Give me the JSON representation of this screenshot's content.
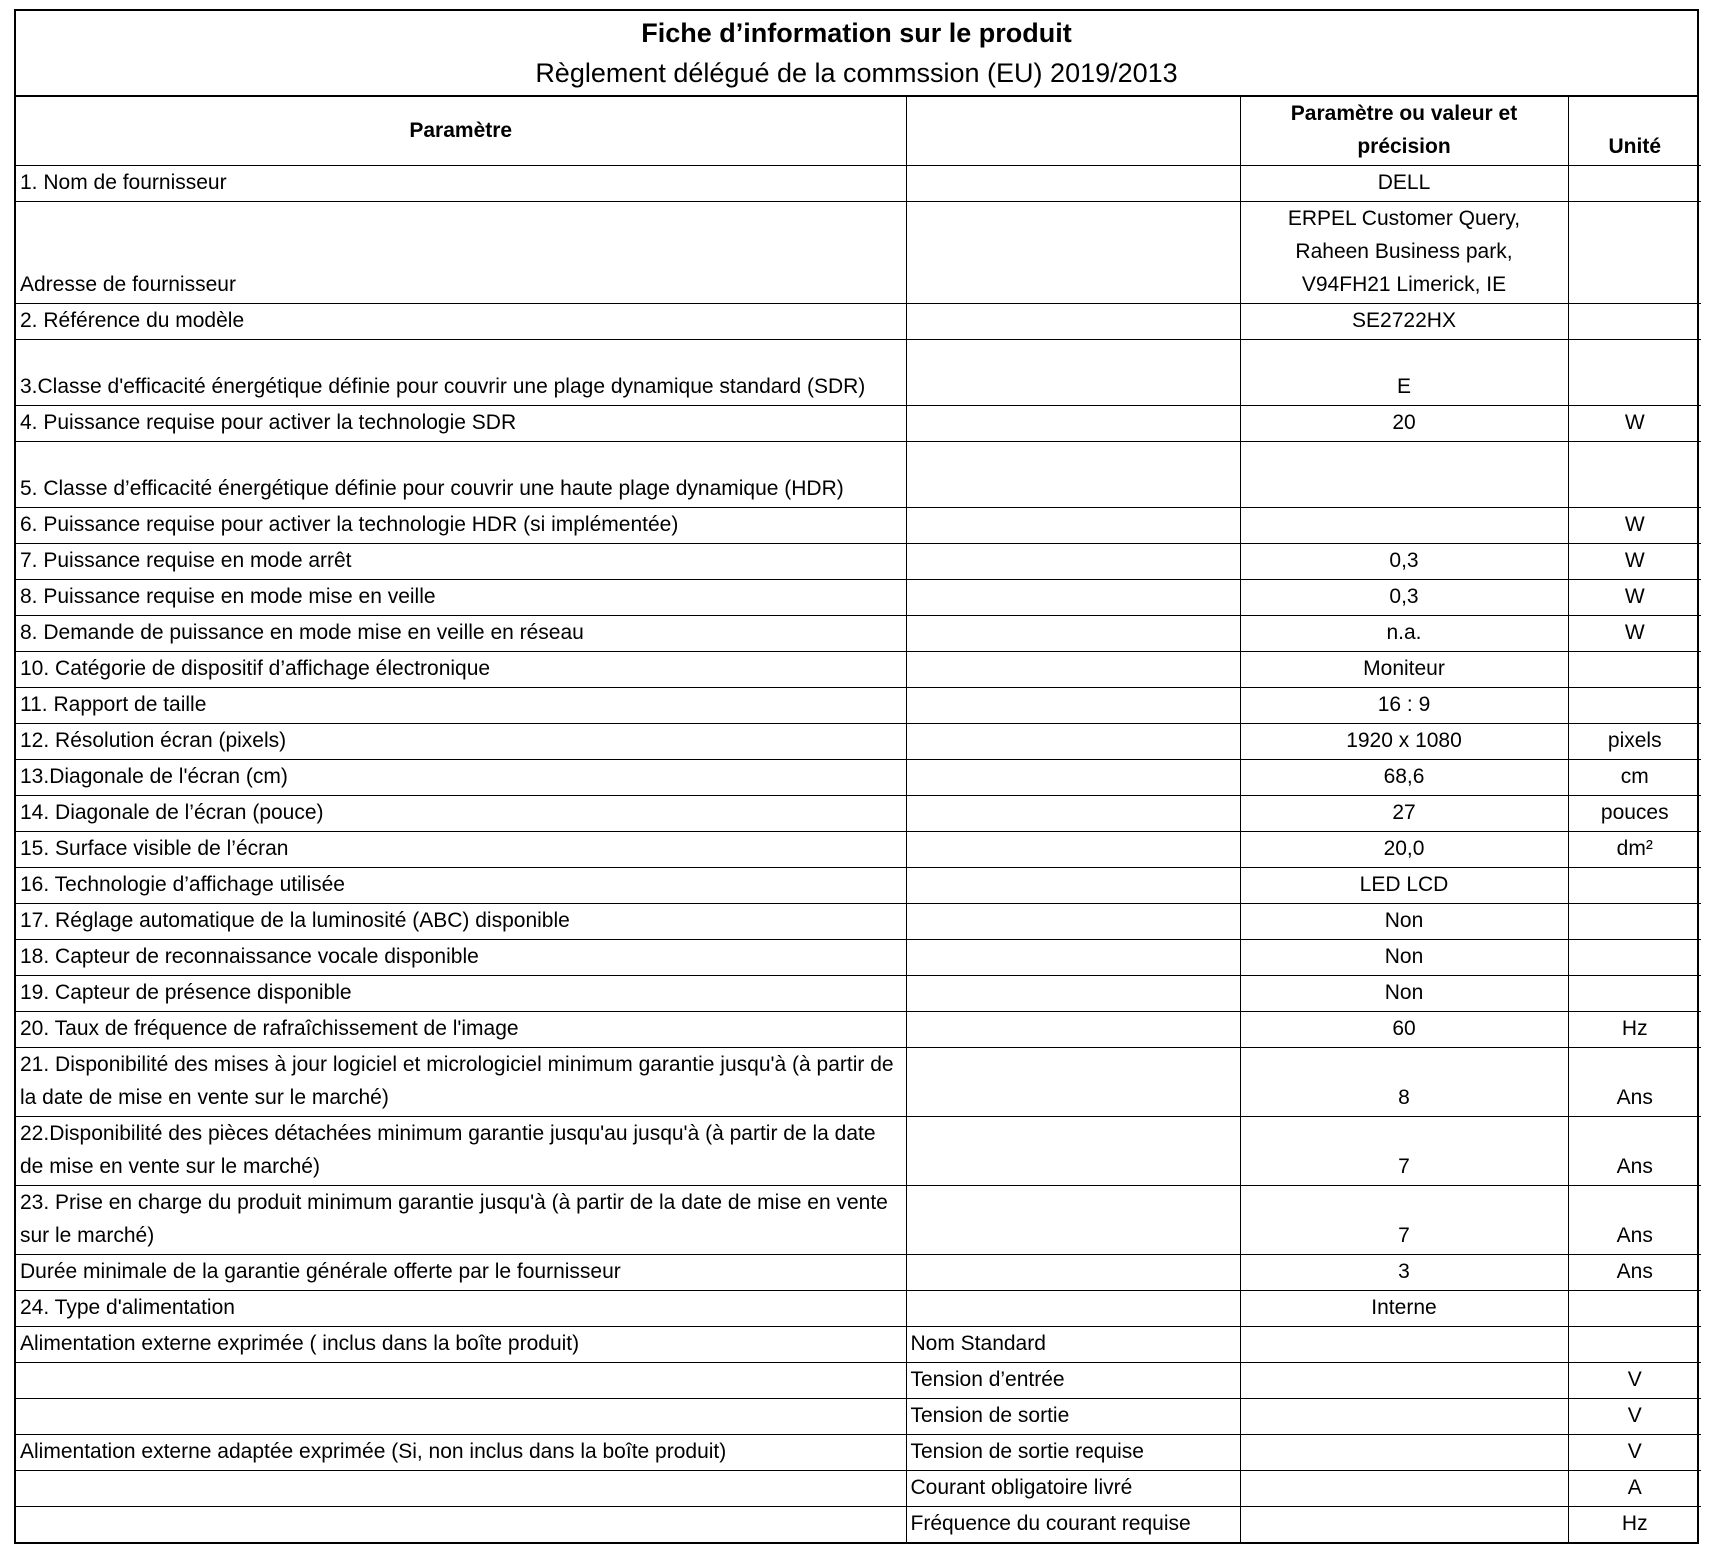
{
  "title": "Fiche d’information sur le produit",
  "subtitle": "Règlement délégué de la commssion (EU) 2019/2013",
  "headers": {
    "parameter": "Paramètre",
    "sub": "",
    "value": "Paramètre ou valeur et précision",
    "unit": "Unité"
  },
  "rows": [
    {
      "param": "1. Nom de fournisseur",
      "sub": "",
      "value": "DELL",
      "unit": "",
      "lines": 1
    },
    {
      "param": "Adresse de fournisseur",
      "sub": "",
      "value": "ERPEL Customer Query,\nRaheen Business park,\nV94FH21 Limerick, IE",
      "unit": "",
      "lines": 3
    },
    {
      "param": "2. Référence du modèle",
      "sub": "",
      "value": "SE2722HX",
      "unit": "",
      "lines": 1
    },
    {
      "param": "3.Classe d'efficacité énergétique définie pour couvrir une plage dynamique standard (SDR)",
      "sub": "",
      "value": "E",
      "unit": "",
      "lines": 2
    },
    {
      "param": "4. Puissance requise pour activer la technologie SDR",
      "sub": "",
      "value": "20",
      "unit": "W",
      "lines": 1
    },
    {
      "param": "5. Classe d’efficacité énergétique définie pour couvrir une haute plage dynamique (HDR)",
      "sub": "",
      "value": "",
      "unit": "",
      "lines": 2
    },
    {
      "param": "6. Puissance requise pour activer la technologie HDR  (si implémentée)",
      "sub": "",
      "value": "",
      "unit": "W",
      "lines": 1
    },
    {
      "param": "7. Puissance requise en mode arrêt",
      "sub": "",
      "value": "0,3",
      "unit": "W",
      "lines": 1
    },
    {
      "param": "8. Puissance requise en mode mise en veille",
      "sub": "",
      "value": "0,3",
      "unit": "W",
      "lines": 1
    },
    {
      "param": "8. Demande de puissance en mode mise en veille en réseau",
      "sub": "",
      "value": "n.a.",
      "unit": "W",
      "lines": 1
    },
    {
      "param": "10. Catégorie de dispositif d’affichage électronique",
      "sub": "",
      "value": "Moniteur",
      "unit": "",
      "lines": 1
    },
    {
      "param": "11. Rapport de taille",
      "sub": "",
      "value": "16 : 9",
      "unit": "",
      "lines": 1
    },
    {
      "param": "12. Résolution écran (pixels)",
      "sub": "",
      "value": "1920 x 1080",
      "unit": "pixels",
      "lines": 1
    },
    {
      "param": "13.Diagonale de l'écran (cm)",
      "sub": "",
      "value": "68,6",
      "unit": "cm",
      "lines": 1
    },
    {
      "param": "14. Diagonale de l’écran (pouce)",
      "sub": "",
      "value": "27",
      "unit": "pouces",
      "lines": 1
    },
    {
      "param": "15. Surface visible de l’écran",
      "sub": "",
      "value": "20,0",
      "unit": "dm²",
      "lines": 1
    },
    {
      "param": "16. Technologie d’affichage utilisée",
      "sub": "",
      "value": "LED LCD",
      "unit": "",
      "lines": 1
    },
    {
      "param": "17. Réglage automatique de la luminosité (ABC) disponible",
      "sub": "",
      "value": "Non",
      "unit": "",
      "lines": 1
    },
    {
      "param": "18. Capteur de reconnaissance vocale disponible",
      "sub": "",
      "value": "Non",
      "unit": "",
      "lines": 1
    },
    {
      "param": "19. Capteur de présence disponible",
      "sub": "",
      "value": "Non",
      "unit": "",
      "lines": 1
    },
    {
      "param": "20. Taux de fréquence de rafraîchissement de l'image",
      "sub": "",
      "value": "60",
      "unit": "Hz",
      "lines": 1
    },
    {
      "param": "21. Disponibilité des mises à jour logiciel et micrologiciel minimum garantie jusqu'à (à partir de la date de mise en vente sur le marché)",
      "sub": "",
      "value": "8",
      "unit": "Ans",
      "lines": 2
    },
    {
      "param": "22.Disponibilité des pièces détachées minimum garantie jusqu'au jusqu'à (à partir de la date de mise en vente sur le marché)",
      "sub": "",
      "value": "7",
      "unit": "Ans",
      "lines": 2
    },
    {
      "param": "23. Prise en charge du produit minimum garantie jusqu'à (à partir de la date de mise en vente sur le marché)",
      "sub": "",
      "value": "7",
      "unit": "Ans",
      "lines": 2
    },
    {
      "param": "Durée minimale de la garantie générale offerte par le fournisseur",
      "sub": "",
      "value": "3",
      "unit": "Ans",
      "lines": 1
    },
    {
      "param": "24. Type d'alimentation",
      "sub": "",
      "value": "Interne",
      "unit": "",
      "lines": 1
    },
    {
      "param": "Alimentation externe exprimée ( inclus dans la boîte produit)",
      "sub": "Nom Standard",
      "value": "",
      "unit": "",
      "lines": 1
    },
    {
      "param": "",
      "sub": "Tension d’entrée",
      "value": "",
      "unit": "V",
      "lines": 1
    },
    {
      "param": "",
      "sub": "Tension de sortie",
      "value": "",
      "unit": "V",
      "lines": 1
    },
    {
      "param": "Alimentation externe adaptée exprimée (Si, non inclus dans la boîte produit)",
      "sub": "Tension de sortie requise",
      "value": "",
      "unit": "V",
      "lines": 1
    },
    {
      "param": "",
      "sub": "Courant obligatoire livré",
      "value": "",
      "unit": "A",
      "lines": 1
    },
    {
      "param": "",
      "sub": "Fréquence du courant requise",
      "value": "",
      "unit": "Hz",
      "lines": 1
    }
  ]
}
